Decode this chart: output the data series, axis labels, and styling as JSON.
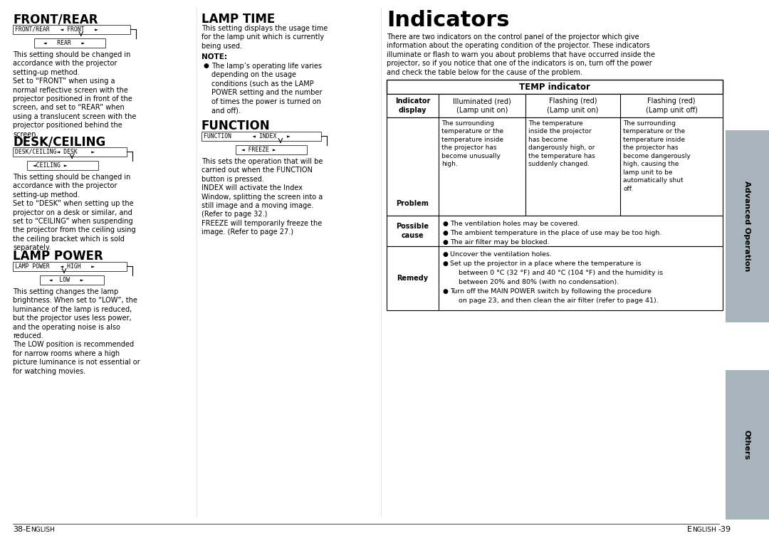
{
  "page_bg": "#ffffff",
  "front_rear_title": "FRONT/REAR",
  "front_rear_box1": "FRONT/REAR   ◄ FRONT   ►",
  "front_rear_box2": "◄   REAR   ►",
  "front_rear_body": "This setting should be changed in\naccordance with the projector\nsetting-up method.\nSet to “FRONT” when using a\nnormal reflective screen with the\nprojector positioned in front of the\nscreen, and set to “REAR” when\nusing a translucent screen with the\nprojector positioned behind the\nscreen.",
  "desk_ceiling_title": "DESK/CEILING",
  "desk_ceiling_box1": "DESK/CEILING◄ DESK    ►",
  "desk_ceiling_box2": "◄CEILING ►",
  "desk_ceiling_body": "This setting should be changed in\naccordance with the projector\nsetting-up method.\nSet to “DESK” when setting up the\nprojector on a desk or similar, and\nset to “CEILING” when suspending\nthe projector from the ceiling using\nthe ceiling bracket which is sold\nseparately.",
  "lamp_power_title": "LAMP POWER",
  "lamp_power_box1": "LAMP POWER   ◄ HIGH   ►",
  "lamp_power_box2": "◄  LOW   ►",
  "lamp_power_body": "This setting changes the lamp\nbrightness. When set to “LOW”, the\nluminance of the lamp is reduced,\nbut the projector uses less power,\nand the operating noise is also\nreduced.\nThe LOW position is recommended\nfor narrow rooms where a high\npicture luminance is not essential or\nfor watching movies.",
  "lamp_time_title": "LAMP TIME",
  "lamp_time_body": "This setting displays the usage time\nfor the lamp unit which is currently\nbeing used.",
  "note_label": "NOTE:",
  "note_body": "The lamp’s operating life varies\ndepending on the usage\nconditions (such as the LAMP\nPOWER setting and the number\nof times the power is turned on\nand off).",
  "function_title": "FUNCTION",
  "function_box1": "FUNCTION      ◄ INDEX   ►",
  "function_box2": "◄ FREEZE ►",
  "function_body": "This sets the operation that will be\ncarried out when the FUNCTION\nbutton is pressed.\nINDEX will activate the Index\nWindow, splitting the screen into a\nstill image and a moving image.\n(Refer to page 32.)\nFREEZE will temporarily freeze the\nimage. (Refer to page 27.)",
  "indicators_title": "Indicators",
  "indicators_intro": "There are two indicators on the control panel of the projector which give\ninformation about the operating condition of the projector. These indicators\nilluminate or flash to warn you about problems that have occurred inside the\nprojector, so if you notice that one of the indicators is on, turn off the power\nand check the table below for the cause of the problem.",
  "table_title": "TEMP indicator",
  "col0_header": "Indicator\ndisplay",
  "col1_header": "Illuminated (red)\n(Lamp unit on)",
  "col2_header": "Flashing (red)\n(Lamp unit on)",
  "col3_header": "Flashing (red)\n(Lamp unit off)",
  "problem_label": "Problem",
  "problem_col1": "The surrounding\ntemperature or the\ntemperature inside\nthe projector has\nbecome unusually\nhigh.",
  "problem_col2": "The temperature\ninside the projector\nhas become\ndangerously high, or\nthe temperature has\nsuddenly changed.",
  "problem_col3": "The surrounding\ntemperature or the\ntemperature inside\nthe projector has\nbecome dangerously\nhigh, causing the\nlamp unit to be\nautomatically shut\noff.",
  "possible_label": "Possible\ncause",
  "possible_lines": [
    "The ventilation holes may be covered.",
    "The ambient temperature in the place of use may be too high.",
    "The air filter may be blocked."
  ],
  "remedy_label": "Remedy",
  "remedy_lines": [
    "Uncover the ventilation holes.",
    "Set up the projector in a place where the temperature is",
    "    between 0 °C (32 °F) and 40 °C (104 °F) and the humidity is",
    "    between 20% and 80% (with no condensation).",
    "Turn off the MAIN POWER switch by following the procedure",
    "    on page 23, and then clean the air filter (refer to page 41)."
  ],
  "sidebar_top_label": "Advanced Operation",
  "sidebar_bottom_label": "Others",
  "sidebar_top_color": "#a8b4bc",
  "sidebar_bottom_color": "#a8b4bc",
  "footer_left": "38-E",
  "footer_left2": "NGLISH",
  "footer_right": "E",
  "footer_right2": "NGLISH",
  "footer_right3": "-39",
  "footer_left_full": "38-ENGLISH",
  "footer_right_full": "ENGLISH-39"
}
